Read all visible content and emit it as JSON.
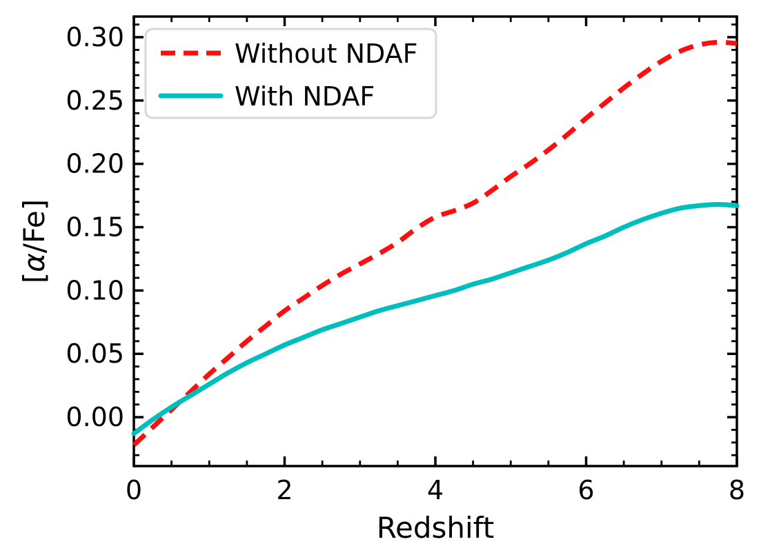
{
  "figure": {
    "background": "#ffffff",
    "text_color": "#000000",
    "spine_color": "#000000"
  },
  "chart_data": {
    "type": "line",
    "title": "",
    "xlabel": "Redshift",
    "ylabel": "[α/Fe]",
    "xlim": [
      0,
      8
    ],
    "ylim": [
      -0.0386,
      0.3163
    ],
    "grid": false,
    "legend_position": "upper-left",
    "x_major_ticks": [
      0,
      2,
      4,
      6,
      8
    ],
    "x_tick_labels": [
      "0",
      "2",
      "4",
      "6",
      "8"
    ],
    "x_minor_step": 0.5,
    "y_major_ticks": [
      0.0,
      0.05,
      0.1,
      0.15,
      0.2,
      0.25,
      0.3
    ],
    "y_tick_labels": [
      "0.00",
      "0.05",
      "0.10",
      "0.15",
      "0.20",
      "0.25",
      "0.30"
    ],
    "y_minor_step": 0.01,
    "x": [
      0,
      0.25,
      0.5,
      0.75,
      1,
      1.25,
      1.5,
      1.75,
      2,
      2.25,
      2.5,
      2.75,
      3,
      3.25,
      3.5,
      3.75,
      4,
      4.25,
      4.5,
      4.75,
      5,
      5.25,
      5.5,
      5.75,
      6,
      6.25,
      6.5,
      6.75,
      7,
      7.25,
      7.5,
      7.75,
      8
    ],
    "series": [
      {
        "name": "Without NDAF",
        "color": "#fb0f0f",
        "style": "dashed",
        "values": [
          -0.022,
          -0.008,
          0.006,
          0.02,
          0.034,
          0.047,
          0.06,
          0.072,
          0.084,
          0.094,
          0.104,
          0.113,
          0.121,
          0.129,
          0.138,
          0.149,
          0.158,
          0.163,
          0.169,
          0.179,
          0.19,
          0.2,
          0.211,
          0.223,
          0.236,
          0.248,
          0.26,
          0.271,
          0.281,
          0.289,
          0.294,
          0.296,
          0.295
        ]
      },
      {
        "name": "With NDAF",
        "color": "#00bdbe",
        "style": "solid",
        "values": [
          -0.013,
          -0.002,
          0.008,
          0.017,
          0.026,
          0.035,
          0.043,
          0.05,
          0.057,
          0.063,
          0.069,
          0.074,
          0.079,
          0.084,
          0.088,
          0.092,
          0.096,
          0.1,
          0.105,
          0.109,
          0.114,
          0.119,
          0.124,
          0.13,
          0.137,
          0.143,
          0.15,
          0.156,
          0.161,
          0.165,
          0.167,
          0.168,
          0.167
        ]
      }
    ]
  }
}
